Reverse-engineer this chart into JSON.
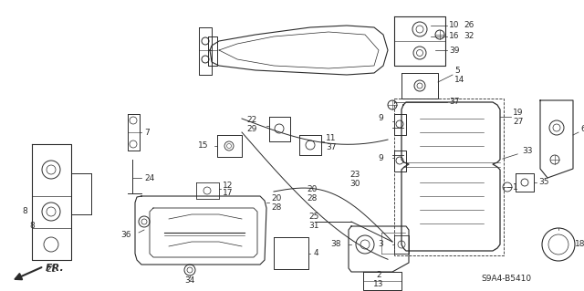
{
  "background_color": "#ffffff",
  "diagram_color": "#2a2a2a",
  "figsize": [
    6.4,
    3.19
  ],
  "dpi": 100,
  "diagram_id": "S9A4-B5410",
  "fr_label": "FR."
}
